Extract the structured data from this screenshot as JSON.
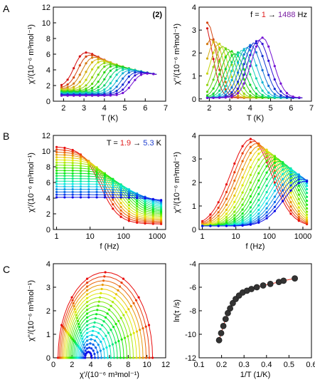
{
  "figure": {
    "panel_letters": [
      "A",
      "B",
      "C"
    ]
  },
  "chart_data": [
    {
      "id": "A-left",
      "type": "line",
      "tag": "(2)",
      "xlabel": "T (K)",
      "ylabel": "χ'/(10⁻⁶ m³mol⁻¹)",
      "xlim": [
        1.5,
        7
      ],
      "ylim": [
        0,
        12
      ],
      "xticks": [
        2,
        3,
        4,
        5,
        6,
        7
      ],
      "yticks": [
        0,
        2,
        4,
        6,
        8,
        10,
        12
      ],
      "curve_count": 16
    },
    {
      "id": "A-right",
      "type": "line",
      "legend_text": {
        "prefix": "f = ",
        "from": "1",
        "arrow": " → ",
        "to": "1488",
        "unit": " Hz"
      },
      "xlabel": "T (K)",
      "ylabel": "χ''/(10⁻⁶ m³mol⁻¹)",
      "xlim": [
        1.5,
        7
      ],
      "ylim": [
        -0.1,
        4
      ],
      "xticks": [
        2,
        3,
        4,
        5,
        6,
        7
      ],
      "yticks": [
        0,
        1,
        2,
        3,
        4
      ],
      "curve_count": 16
    },
    {
      "id": "B-left",
      "type": "line",
      "log_x": true,
      "legend_text": {
        "prefix": "T = ",
        "from": "1.9",
        "arrow": " → ",
        "to": "5.3",
        "unit": " K"
      },
      "xlabel": "f (Hz)",
      "ylabel": "χ'/(10⁻⁶ m³mol⁻¹)",
      "xlim": [
        0.8,
        1800
      ],
      "ylim": [
        0,
        12
      ],
      "xticks": [
        1,
        10,
        100,
        1000
      ],
      "yticks": [
        0,
        2,
        4,
        6,
        8,
        10,
        12
      ],
      "curve_count": 20
    },
    {
      "id": "B-right",
      "type": "line",
      "log_x": true,
      "xlabel": "f (Hz)",
      "ylabel": "χ''/(10⁻⁶ m³mol⁻¹)",
      "xlim": [
        0.8,
        1800
      ],
      "ylim": [
        0,
        4
      ],
      "xticks": [
        1,
        10,
        100,
        1000
      ],
      "yticks": [
        0,
        1,
        2,
        3,
        4
      ],
      "curve_count": 20
    },
    {
      "id": "C-left",
      "type": "scatter",
      "xlabel": "χ'/(10⁻⁶ m³mol⁻¹)",
      "ylabel": "χ''/(10⁻⁶ m³mol⁻¹)",
      "xlim": [
        0,
        12
      ],
      "ylim": [
        0,
        4
      ],
      "xticks": [
        0,
        2,
        4,
        6,
        8,
        10,
        12
      ],
      "yticks": [
        0,
        1,
        2,
        3,
        4
      ],
      "curve_count": 20
    },
    {
      "id": "C-right",
      "type": "scatter",
      "xlabel": "1/T (1/K)",
      "ylabel": "ln(τ /s)",
      "xlim": [
        0.1,
        0.6
      ],
      "ylim": [
        -12,
        -4
      ],
      "xticks": [
        0.1,
        0.2,
        0.3,
        0.4,
        0.5,
        0.6
      ],
      "yticks": [
        -12,
        -10,
        -8,
        -6,
        -4
      ],
      "points": {
        "x": [
          0.189,
          0.198,
          0.208,
          0.218,
          0.228,
          0.238,
          0.25,
          0.263,
          0.278,
          0.294,
          0.313,
          0.333,
          0.357,
          0.385,
          0.417,
          0.455,
          0.476,
          0.526
        ],
        "y": [
          -10.5,
          -9.9,
          -9.3,
          -8.7,
          -8.2,
          -7.8,
          -7.35,
          -7.0,
          -6.7,
          -6.45,
          -6.3,
          -6.15,
          -6.0,
          -5.85,
          -5.72,
          -5.55,
          -5.45,
          -5.25
        ]
      },
      "marker_color": "#222222",
      "marker_fill": "#333333",
      "fit_color": "#e03020"
    }
  ]
}
